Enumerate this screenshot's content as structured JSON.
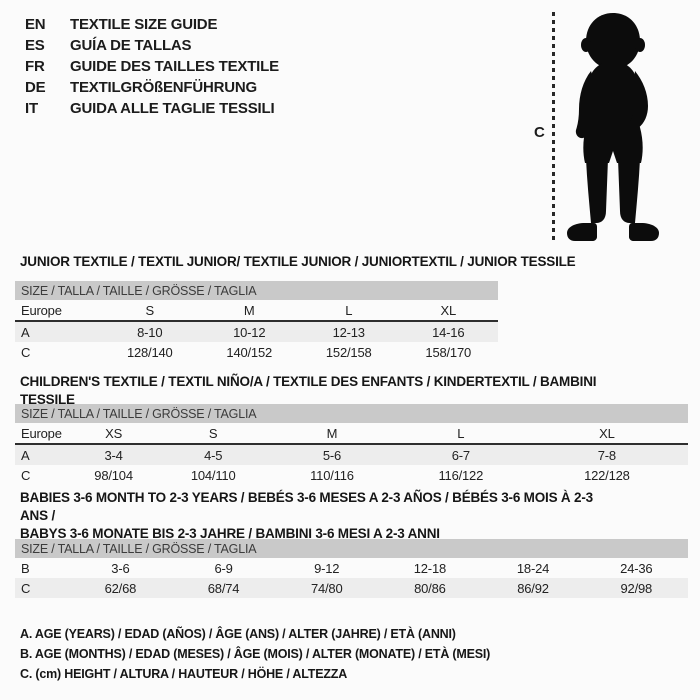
{
  "languages": [
    {
      "code": "EN",
      "text": "TEXTILE SIZE GUIDE"
    },
    {
      "code": "ES",
      "text": "GUÍA DE TALLAS"
    },
    {
      "code": "FR",
      "text": "GUIDE DES TAILLES TEXTILE"
    },
    {
      "code": "DE",
      "text": "TEXTILGRÖßENFÜHRUNG"
    },
    {
      "code": "IT",
      "text": "GUIDA ALLE TAGLIE TESSILI"
    }
  ],
  "figure": {
    "measure_label": "C",
    "icon": "toddler-silhouette"
  },
  "tables": [
    {
      "title": "JUNIOR TEXTILE / TEXTIL JUNIOR/ TEXTILE JUNIOR / JUNIORTEXTIL / JUNIOR TESSILE",
      "header": "SIZE / TALLA / TAILLE / GRÖSSE / TAGLIA",
      "rows": [
        {
          "label": "Europe",
          "values": [
            "S",
            "M",
            "L",
            "XL"
          ]
        },
        {
          "label": "A",
          "values": [
            "8-10",
            "10-12",
            "12-13",
            "14-16"
          ]
        },
        {
          "label": "C",
          "values": [
            "128/140",
            "140/152",
            "152/158",
            "158/170"
          ]
        }
      ]
    },
    {
      "title": "CHILDREN'S TEXTILE / TEXTIL NIÑO/A / TEXTILE DES ENFANTS / KINDERTEXTIL / BAMBINI TESSILE",
      "header": "SIZE / TALLA / TAILLE / GRÖSSE / TAGLIA",
      "rows": [
        {
          "label": "Europe",
          "values": [
            "XS",
            "S",
            "M",
            "L",
            "XL"
          ]
        },
        {
          "label": "A",
          "values": [
            "3-4",
            "4-5",
            "5-6",
            "6-7",
            "7-8"
          ]
        },
        {
          "label": "C",
          "values": [
            "98/104",
            "104/110",
            "110/116",
            "116/122",
            "122/128"
          ]
        }
      ]
    },
    {
      "title": "BABIES 3-6 MONTH TO 2-3 YEARS / BEBÉS 3-6 MESES A 2-3 AÑOS / BÉBÉS 3-6 MOIS À 2-3 ANS /\nBABYS 3-6 MONATE BIS 2-3 JAHRE / BAMBINI 3-6 MESI A 2-3 ANNI",
      "header": "SIZE / TALLA / TAILLE / GRÖSSE / TAGLIA",
      "rows": [
        {
          "label": "B",
          "values": [
            "3-6",
            "6-9",
            "9-12",
            "12-18",
            "18-24",
            "24-36"
          ]
        },
        {
          "label": "C",
          "values": [
            "62/68",
            "68/74",
            "74/80",
            "80/86",
            "86/92",
            "92/98"
          ]
        }
      ]
    }
  ],
  "footnotes": [
    "A. AGE (YEARS) / EDAD (AÑOS) / ÂGE (ANS) / ALTER (JAHRE) / ETÀ (ANNI)",
    "B. AGE (MONTHS) / EDAD (MESES) / ÂGE (MOIS) / ALTER (MONATE) / ETÀ (MESI)",
    "C. (cm) HEIGHT / ALTURA / HAUTEUR / HÖHE / ALTEZZA"
  ],
  "colors": {
    "table_header_bg": "#c9c9c9",
    "row_alt_bg": "#ededed",
    "text": "#1c1c1c",
    "silhouette": "#0c0c0c"
  }
}
